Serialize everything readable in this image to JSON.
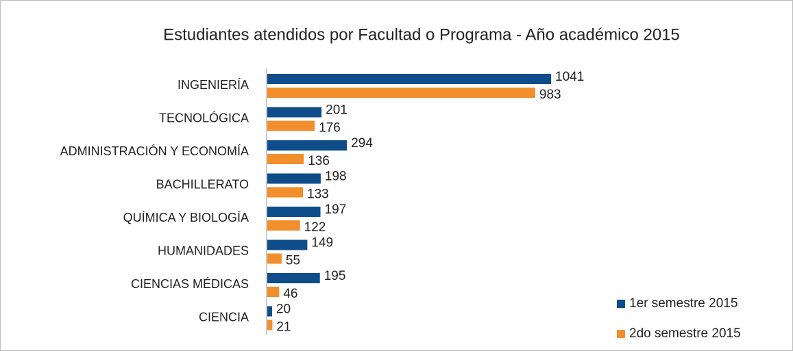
{
  "chart_data": {
    "type": "bar",
    "orientation": "horizontal",
    "title": "Estudiantes atendidos por Facultad o Programa - Año académico 2015",
    "categories": [
      "INGENIERÍA",
      "TECNOLÓGICA",
      "ADMINISTRACIÓN Y ECONOMÍA",
      "BACHILLERATO",
      "QUÍMICA Y BIOLOGÍA",
      "HUMANIDADES",
      "CIENCIAS MÉDICAS",
      "CIENCIA"
    ],
    "series": [
      {
        "name": "1er semestre 2015",
        "color": "#0f4c8a",
        "values": [
          1041,
          201,
          294,
          198,
          197,
          149,
          195,
          20
        ]
      },
      {
        "name": "2do semestre 2015",
        "color": "#f28e2b",
        "values": [
          983,
          176,
          136,
          133,
          122,
          55,
          46,
          21
        ]
      }
    ],
    "legend": "bottom-right"
  }
}
